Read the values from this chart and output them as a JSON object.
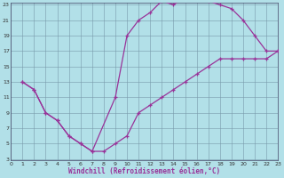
{
  "xlabel": "Windchill (Refroidissement éolien,°C)",
  "bg_color": "#b2e0e8",
  "grid_color": "#7799aa",
  "line_color": "#993399",
  "xmin": 0,
  "xmax": 23,
  "ymin": 3,
  "ymax": 23,
  "yticks": [
    3,
    5,
    7,
    9,
    11,
    13,
    15,
    17,
    19,
    21,
    23
  ],
  "xticks": [
    0,
    1,
    2,
    3,
    4,
    5,
    6,
    7,
    8,
    9,
    10,
    11,
    12,
    13,
    14,
    15,
    16,
    17,
    18,
    19,
    20,
    21,
    22,
    23
  ],
  "line1_x": [
    1,
    2,
    3,
    4,
    5,
    6,
    7,
    9,
    10,
    11,
    12,
    13,
    14,
    15,
    16,
    17,
    18,
    19,
    20,
    21,
    22,
    23
  ],
  "line1_y": [
    13,
    12,
    9,
    8,
    6,
    5,
    4,
    11,
    19,
    21,
    22,
    23.5,
    23,
    24,
    24,
    23.5,
    23,
    22.5,
    21,
    19,
    17,
    17
  ],
  "line2_x": [
    1,
    2,
    3,
    4,
    5,
    6,
    7,
    8,
    9,
    10,
    11,
    12,
    13,
    14,
    15,
    16,
    17,
    18,
    19,
    20,
    21,
    22,
    23
  ],
  "line2_y": [
    13,
    12,
    9,
    8,
    6,
    5,
    4,
    4,
    5,
    6,
    9,
    10,
    11,
    12,
    13,
    14,
    15,
    16,
    16,
    16,
    16,
    16,
    17
  ]
}
